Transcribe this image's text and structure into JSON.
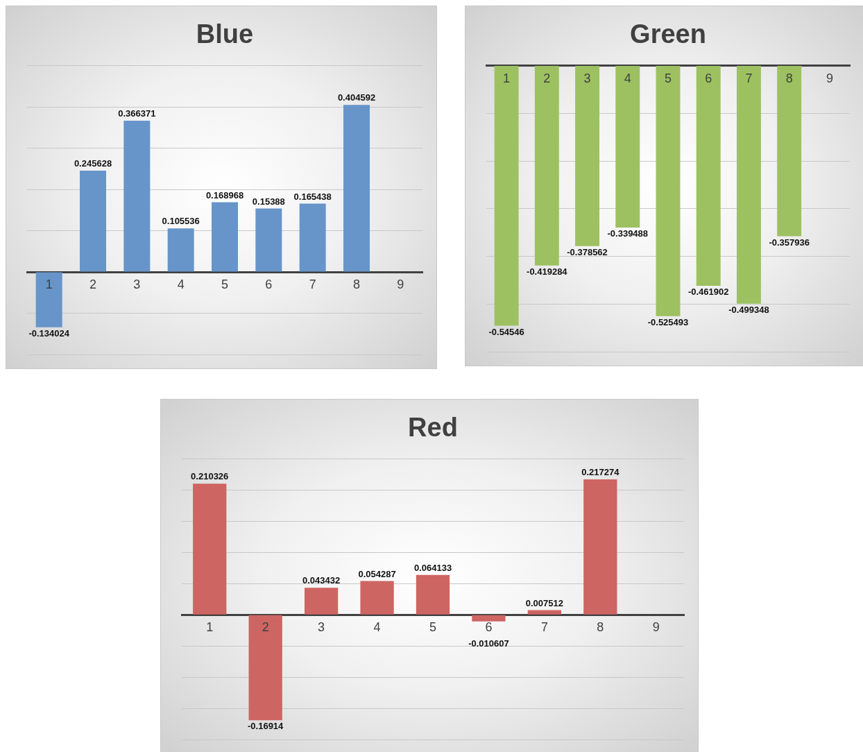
{
  "chart_data": [
    {
      "type": "bar",
      "title": "Blue",
      "categories": [
        "1",
        "2",
        "3",
        "4",
        "5",
        "6",
        "7",
        "8",
        "9"
      ],
      "values": [
        -0.134024,
        0.245628,
        0.366371,
        0.105536,
        0.168968,
        0.15388,
        0.165438,
        0.404592,
        null
      ],
      "color": "#6795c9",
      "ylim": [
        -0.2,
        0.5
      ],
      "yticks": [
        {
          "value": -0.2,
          "label": null
        },
        {
          "value": -0.1,
          "label": null
        },
        {
          "value": 0,
          "label": null
        },
        {
          "value": 0.1,
          "label": null
        },
        {
          "value": 0.2,
          "label": null
        },
        {
          "value": 0.3,
          "label": null
        },
        {
          "value": 0.4,
          "label": null
        },
        {
          "value": 0.5,
          "label": null
        }
      ],
      "grid": "y",
      "data_labels": true,
      "tick_labels": "x"
    },
    {
      "type": "bar",
      "title": "Green",
      "categories": [
        "1",
        "2",
        "3",
        "4",
        "5",
        "6",
        "7",
        "8",
        "9"
      ],
      "values": [
        -0.54546,
        -0.419284,
        -0.378562,
        -0.339488,
        -0.525493,
        -0.461902,
        -0.499348,
        -0.357936,
        null
      ],
      "color": "#9dc161",
      "ylim": [
        -0.6,
        0
      ],
      "yticks": [
        {
          "value": -0.6,
          "label": null
        },
        {
          "value": -0.5,
          "label": null
        },
        {
          "value": -0.4,
          "label": null
        },
        {
          "value": -0.3,
          "label": null
        },
        {
          "value": -0.2,
          "label": null
        },
        {
          "value": -0.1,
          "label": null
        },
        {
          "value": 0,
          "label": null
        }
      ],
      "grid": "y",
      "data_labels": true,
      "tick_labels": "x"
    },
    {
      "type": "bar",
      "title": "Red",
      "categories": [
        "1",
        "2",
        "3",
        "4",
        "5",
        "6",
        "7",
        "8",
        "9"
      ],
      "values": [
        0.210326,
        -0.16914,
        0.043432,
        0.054287,
        0.064133,
        -0.010607,
        0.007512,
        0.217274,
        null
      ],
      "color": "#cd6562",
      "ylim": [
        -0.2,
        0.25
      ],
      "yticks": [
        {
          "value": -0.2,
          "label": null
        },
        {
          "value": -0.15,
          "label": null
        },
        {
          "value": -0.1,
          "label": null
        },
        {
          "value": -0.05,
          "label": null
        },
        {
          "value": 0,
          "label": null
        },
        {
          "value": 0.05,
          "label": null
        },
        {
          "value": 0.1,
          "label": null
        },
        {
          "value": 0.15,
          "label": null
        },
        {
          "value": 0.2,
          "label": null
        },
        {
          "value": 0.25,
          "label": null
        }
      ],
      "grid": "y",
      "data_labels": true,
      "tick_labels": "x"
    }
  ]
}
